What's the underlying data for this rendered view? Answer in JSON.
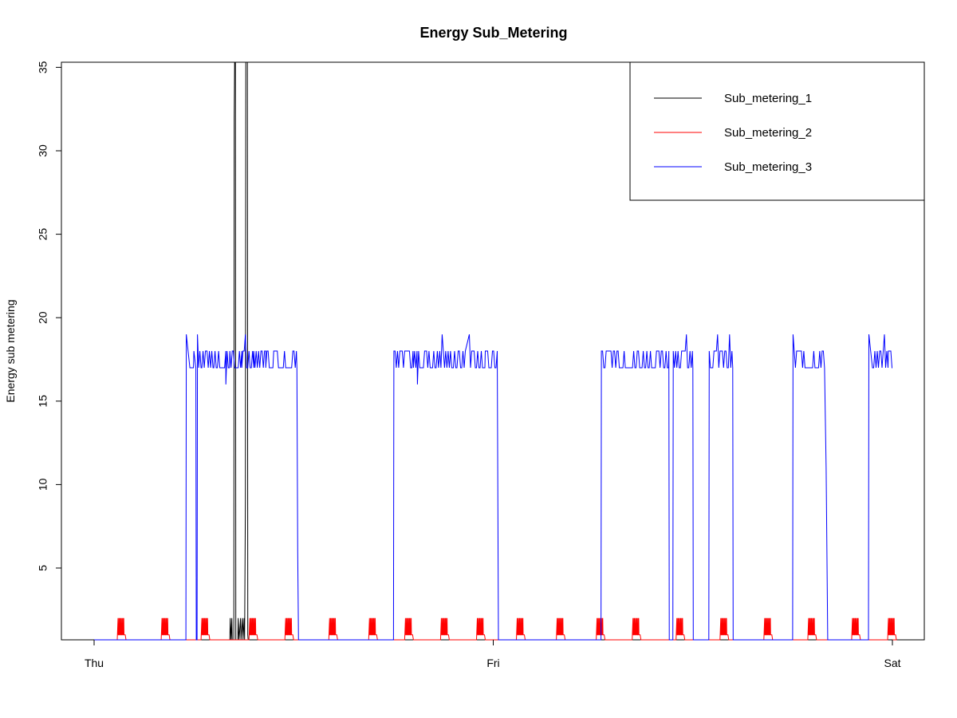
{
  "chart_data": {
    "type": "line",
    "title": "Energy Sub_Metering",
    "xlabel": "",
    "ylabel": "Energy sub metering",
    "x_ticks": [
      "Thu",
      "Fri",
      "Sat"
    ],
    "y_ticks": [
      5,
      10,
      15,
      20,
      25,
      30,
      35
    ],
    "xlim": [
      "Thu 00:00",
      "Sat 00:00"
    ],
    "ylim": [
      0,
      35
    ],
    "grid": false,
    "legend_position": "top-right",
    "series": [
      {
        "name": "Sub_metering_1",
        "color": "#000000",
        "points": [
          [
            0,
            0
          ],
          [
            0.34,
            0
          ],
          [
            0.341,
            2
          ],
          [
            0.343,
            0
          ],
          [
            0.345,
            2
          ],
          [
            0.346,
            0
          ],
          [
            0.35,
            0
          ],
          [
            0.351,
            32
          ],
          [
            0.352,
            38
          ],
          [
            0.354,
            38
          ],
          [
            0.355,
            0
          ],
          [
            0.36,
            0
          ],
          [
            0.361,
            2
          ],
          [
            0.363,
            0
          ],
          [
            0.367,
            2
          ],
          [
            0.368,
            0
          ],
          [
            0.372,
            2
          ],
          [
            0.373,
            0
          ],
          [
            0.376,
            2
          ],
          [
            0.377,
            0
          ],
          [
            0.379,
            9
          ],
          [
            0.38,
            38
          ],
          [
            0.384,
            38
          ],
          [
            0.385,
            1
          ],
          [
            0.386,
            0
          ],
          [
            2,
            0
          ]
        ]
      },
      {
        "name": "Sub_metering_2",
        "color": "#ff0000",
        "bursts": [
          0.06,
          0.17,
          0.27,
          0.39,
          0.48,
          0.59,
          0.69,
          0.78,
          0.87,
          0.96,
          1.06,
          1.16,
          1.26,
          1.35,
          1.46,
          1.57,
          1.68,
          1.79,
          1.9,
          1.99
        ],
        "burst_peak": 2,
        "burst_base": 1
      },
      {
        "name": "Sub_metering_3",
        "color": "#0000ff",
        "points": [
          [
            0,
            0
          ],
          [
            0.23,
            0
          ],
          [
            0.231,
            19
          ],
          [
            0.24,
            17
          ],
          [
            0.25,
            18
          ],
          [
            0.255,
            17
          ],
          [
            0.256,
            0
          ],
          [
            0.258,
            0
          ],
          [
            0.259,
            19
          ],
          [
            0.27,
            17
          ],
          [
            0.28,
            18
          ],
          [
            0.3,
            17
          ],
          [
            0.33,
            16
          ],
          [
            0.34,
            18
          ],
          [
            0.37,
            17
          ],
          [
            0.4,
            18
          ],
          [
            0.43,
            17
          ],
          [
            0.45,
            18
          ],
          [
            0.508,
            17
          ],
          [
            0.51,
            6
          ],
          [
            0.512,
            0
          ],
          [
            0.75,
            0
          ],
          [
            0.751,
            18
          ],
          [
            0.8,
            17
          ],
          [
            0.81,
            16
          ],
          [
            0.83,
            18
          ],
          [
            0.9,
            17
          ],
          [
            0.93,
            18
          ],
          [
            0.94,
            19
          ],
          [
            0.98,
            18
          ],
          [
            1.01,
            18
          ],
          [
            1.013,
            0
          ],
          [
            1.27,
            0
          ],
          [
            1.271,
            18
          ],
          [
            1.4,
            17
          ],
          [
            1.44,
            18
          ],
          [
            1.441,
            0
          ],
          [
            1.45,
            0
          ],
          [
            1.451,
            18
          ],
          [
            1.5,
            17
          ],
          [
            1.501,
            0
          ],
          [
            1.54,
            0
          ],
          [
            1.541,
            18
          ],
          [
            1.6,
            17
          ],
          [
            1.601,
            0
          ],
          [
            1.75,
            0
          ],
          [
            1.751,
            19
          ],
          [
            1.8,
            17
          ],
          [
            1.83,
            17
          ],
          [
            1.834,
            11
          ],
          [
            1.838,
            0
          ],
          [
            1.94,
            0
          ],
          [
            1.941,
            19
          ],
          [
            1.95,
            17
          ],
          [
            1.99,
            18
          ],
          [
            2.0,
            17
          ]
        ]
      }
    ]
  }
}
